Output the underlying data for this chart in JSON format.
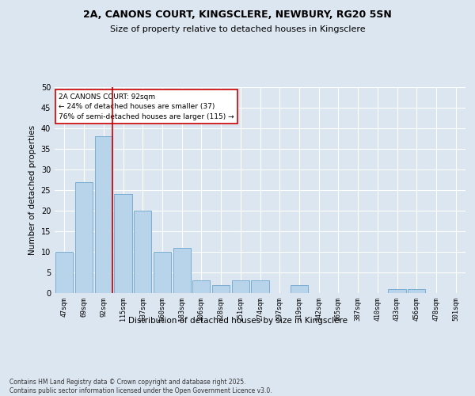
{
  "title1": "2A, CANONS COURT, KINGSCLERE, NEWBURY, RG20 5SN",
  "title2": "Size of property relative to detached houses in Kingsclere",
  "xlabel": "Distribution of detached houses by size in Kingsclere",
  "ylabel": "Number of detached properties",
  "categories": [
    "47sqm",
    "69sqm",
    "92sqm",
    "115sqm",
    "137sqm",
    "160sqm",
    "183sqm",
    "206sqm",
    "228sqm",
    "251sqm",
    "274sqm",
    "297sqm",
    "319sqm",
    "342sqm",
    "365sqm",
    "387sqm",
    "410sqm",
    "433sqm",
    "456sqm",
    "478sqm",
    "501sqm"
  ],
  "values": [
    10,
    27,
    38,
    24,
    20,
    10,
    11,
    3,
    2,
    3,
    3,
    0,
    2,
    0,
    0,
    0,
    0,
    1,
    1,
    0,
    0
  ],
  "bar_color": "#b8d4ea",
  "bar_edge_color": "#7aadd4",
  "highlight_index": 2,
  "highlight_line_color": "#cc0000",
  "annotation_text": "2A CANONS COURT: 92sqm\n← 24% of detached houses are smaller (37)\n76% of semi-detached houses are larger (115) →",
  "annotation_box_color": "#ffffff",
  "annotation_box_edge": "#cc0000",
  "ylim": [
    0,
    50
  ],
  "yticks": [
    0,
    5,
    10,
    15,
    20,
    25,
    30,
    35,
    40,
    45,
    50
  ],
  "footer": "Contains HM Land Registry data © Crown copyright and database right 2025.\nContains public sector information licensed under the Open Government Licence v3.0.",
  "bg_color": "#dce6f0",
  "plot_bg_color": "#dce6f0"
}
